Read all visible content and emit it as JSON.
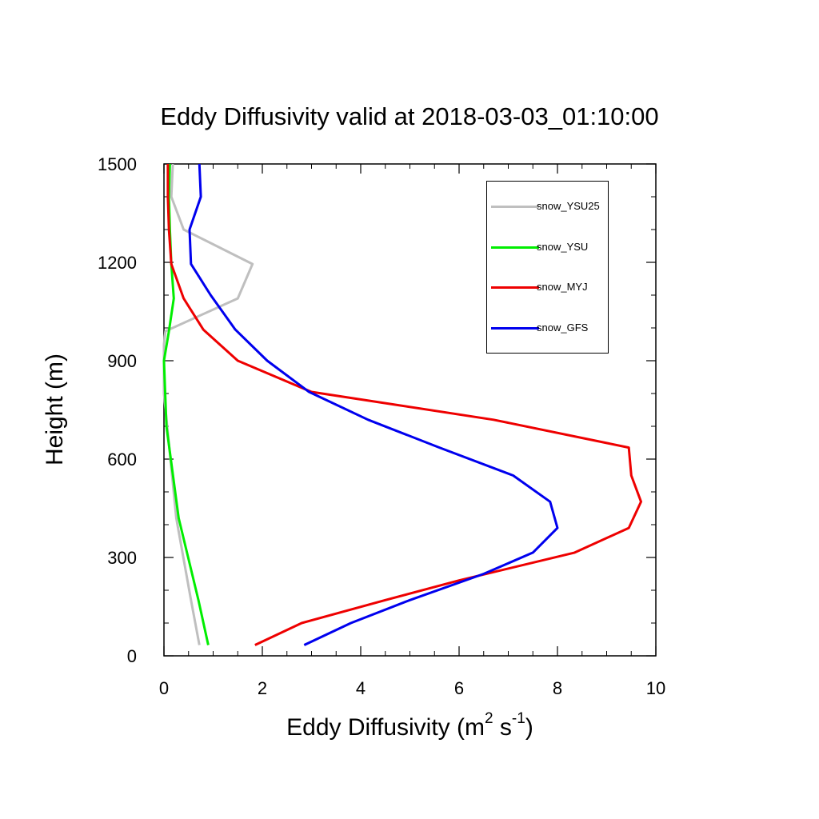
{
  "chart_data": {
    "type": "line",
    "title": "Eddy Diffusivity valid at 2018-03-03_01:10:00",
    "xlabel_main": "Eddy Diffusivity (m",
    "xlabel_sup1": "2",
    "xlabel_mid": " s",
    "xlabel_sup2": "-1",
    "xlabel_end": ")",
    "ylabel": "Height (m)",
    "xlim": [
      0,
      10
    ],
    "ylim": [
      0,
      1500
    ],
    "xticks": [
      0,
      2,
      4,
      6,
      8,
      10
    ],
    "yticks": [
      0,
      300,
      600,
      900,
      1200,
      1500
    ],
    "grid": false,
    "legend_position": "top-right",
    "series": [
      {
        "name": "snow_YSU25",
        "color": "#bfbfbf",
        "points": [
          [
            0.72,
            33
          ],
          [
            0.55,
            170
          ],
          [
            0.25,
            420
          ],
          [
            0.0,
            800
          ],
          [
            0.0,
            950
          ],
          [
            0.03,
            990
          ],
          [
            1.5,
            1090
          ],
          [
            1.8,
            1195
          ],
          [
            0.4,
            1300
          ],
          [
            0.15,
            1400
          ],
          [
            0.18,
            1500
          ]
        ]
      },
      {
        "name": "snow_YSU",
        "color": "#00ee00",
        "points": [
          [
            0.9,
            33
          ],
          [
            0.7,
            170
          ],
          [
            0.3,
            420
          ],
          [
            0.05,
            700
          ],
          [
            0.0,
            900
          ],
          [
            0.1,
            990
          ],
          [
            0.2,
            1090
          ],
          [
            0.15,
            1195
          ],
          [
            0.12,
            1300
          ],
          [
            0.1,
            1400
          ],
          [
            0.12,
            1500
          ]
        ]
      },
      {
        "name": "snow_MYJ",
        "color": "#ee0000",
        "points": [
          [
            1.85,
            33
          ],
          [
            2.8,
            100
          ],
          [
            4.5,
            170
          ],
          [
            6.0,
            230
          ],
          [
            8.35,
            315
          ],
          [
            9.45,
            390
          ],
          [
            9.7,
            470
          ],
          [
            9.5,
            550
          ],
          [
            9.45,
            635
          ],
          [
            6.7,
            720
          ],
          [
            3.0,
            805
          ],
          [
            1.5,
            900
          ],
          [
            0.8,
            995
          ],
          [
            0.4,
            1090
          ],
          [
            0.15,
            1195
          ],
          [
            0.1,
            1300
          ],
          [
            0.08,
            1400
          ],
          [
            0.08,
            1500
          ]
        ]
      },
      {
        "name": "snow_GFS",
        "color": "#0000ee",
        "points": [
          [
            2.85,
            33
          ],
          [
            3.8,
            100
          ],
          [
            5.0,
            170
          ],
          [
            6.5,
            250
          ],
          [
            7.5,
            315
          ],
          [
            8.0,
            390
          ],
          [
            7.85,
            470
          ],
          [
            7.1,
            550
          ],
          [
            5.6,
            635
          ],
          [
            4.15,
            720
          ],
          [
            2.95,
            805
          ],
          [
            2.1,
            900
          ],
          [
            1.45,
            995
          ],
          [
            0.95,
            1100
          ],
          [
            0.55,
            1195
          ],
          [
            0.52,
            1300
          ],
          [
            0.75,
            1400
          ],
          [
            0.72,
            1500
          ]
        ]
      }
    ]
  }
}
